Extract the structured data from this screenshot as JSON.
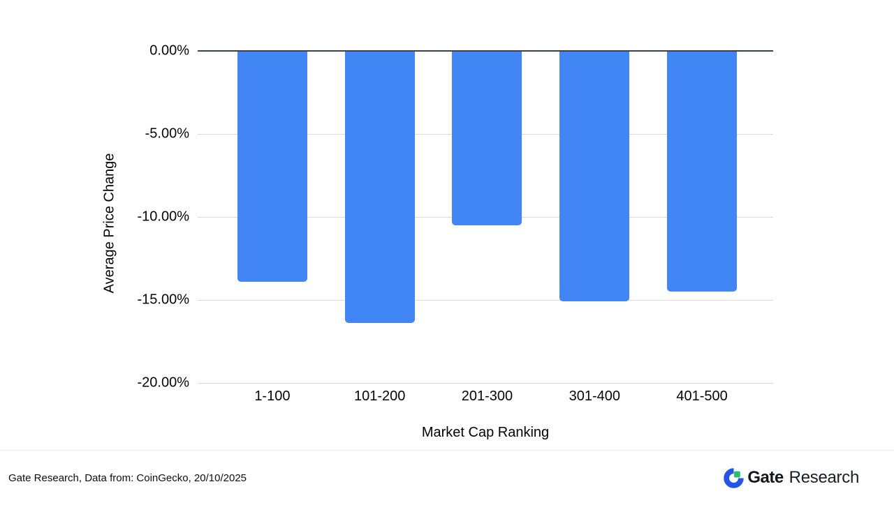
{
  "chart_data": {
    "type": "bar",
    "title": "",
    "categories": [
      "1-100",
      "101-200",
      "201-300",
      "301-400",
      "401-500"
    ],
    "values": [
      -13.9,
      -16.4,
      -10.5,
      -15.1,
      -14.5
    ],
    "xlabel": "Market Cap Ranking",
    "ylabel": "Average Price Change",
    "ylim": [
      -20,
      0
    ],
    "yticks": [
      0,
      -5,
      -10,
      -15,
      -20
    ],
    "ytick_labels": [
      "0.00%",
      "-5.00%",
      "-10.00%",
      "-15.00%",
      "-20.00%"
    ],
    "bar_color": "#4285F4",
    "grid": true,
    "legend_position": "none",
    "value_format": "percent"
  },
  "footer": {
    "source_text": "Gate Research, Data from: CoinGecko, 20/10/2025",
    "logo": {
      "brand": "Gate",
      "suffix": "Research",
      "blue": "#2354E6",
      "green": "#2EBD6B"
    }
  },
  "colors": {
    "background": "#FFFFFF",
    "zero_axis_line": "#3C4043",
    "gridline": "#D9D9D9",
    "divider": "#E8EAED",
    "text": "#0D0E12"
  }
}
